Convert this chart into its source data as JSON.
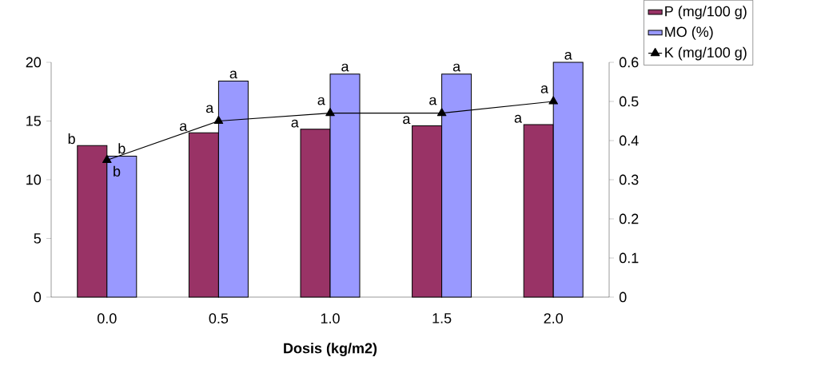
{
  "chart_data": {
    "type": "bar",
    "xlabel": "Dosis (kg/m2)",
    "categories": [
      "0.0",
      "0.5",
      "1.0",
      "1.5",
      "2.0"
    ],
    "series": [
      {
        "name": "P (mg/100 g)",
        "color": "#993366",
        "values": [
          12.9,
          14.0,
          14.3,
          14.6,
          14.7
        ],
        "value_labels": [
          "b",
          "a",
          "a",
          "a",
          "a"
        ]
      },
      {
        "name": "MO (%)",
        "color": "#9999ff",
        "values": [
          12.0,
          18.4,
          19.0,
          19.0,
          20.0
        ],
        "value_labels": [
          "b",
          "a",
          "a",
          "a",
          "a"
        ]
      },
      {
        "name": "K (mg/100 g)",
        "type": "line",
        "axis": "y2",
        "color": "#000000",
        "values": [
          0.35,
          0.45,
          0.47,
          0.47,
          0.5
        ],
        "value_labels": [
          "b",
          "a",
          "a",
          "a",
          "a"
        ]
      }
    ],
    "ylim": [
      0,
      20
    ],
    "yticks": [
      0,
      5,
      10,
      15,
      20
    ],
    "y2lim": [
      0,
      0.6
    ],
    "y2ticks": [
      0,
      0.1,
      0.2,
      0.3,
      0.4,
      0.5,
      0.6
    ],
    "marker": "triangle",
    "line_style": "solid",
    "legend": "top right"
  }
}
